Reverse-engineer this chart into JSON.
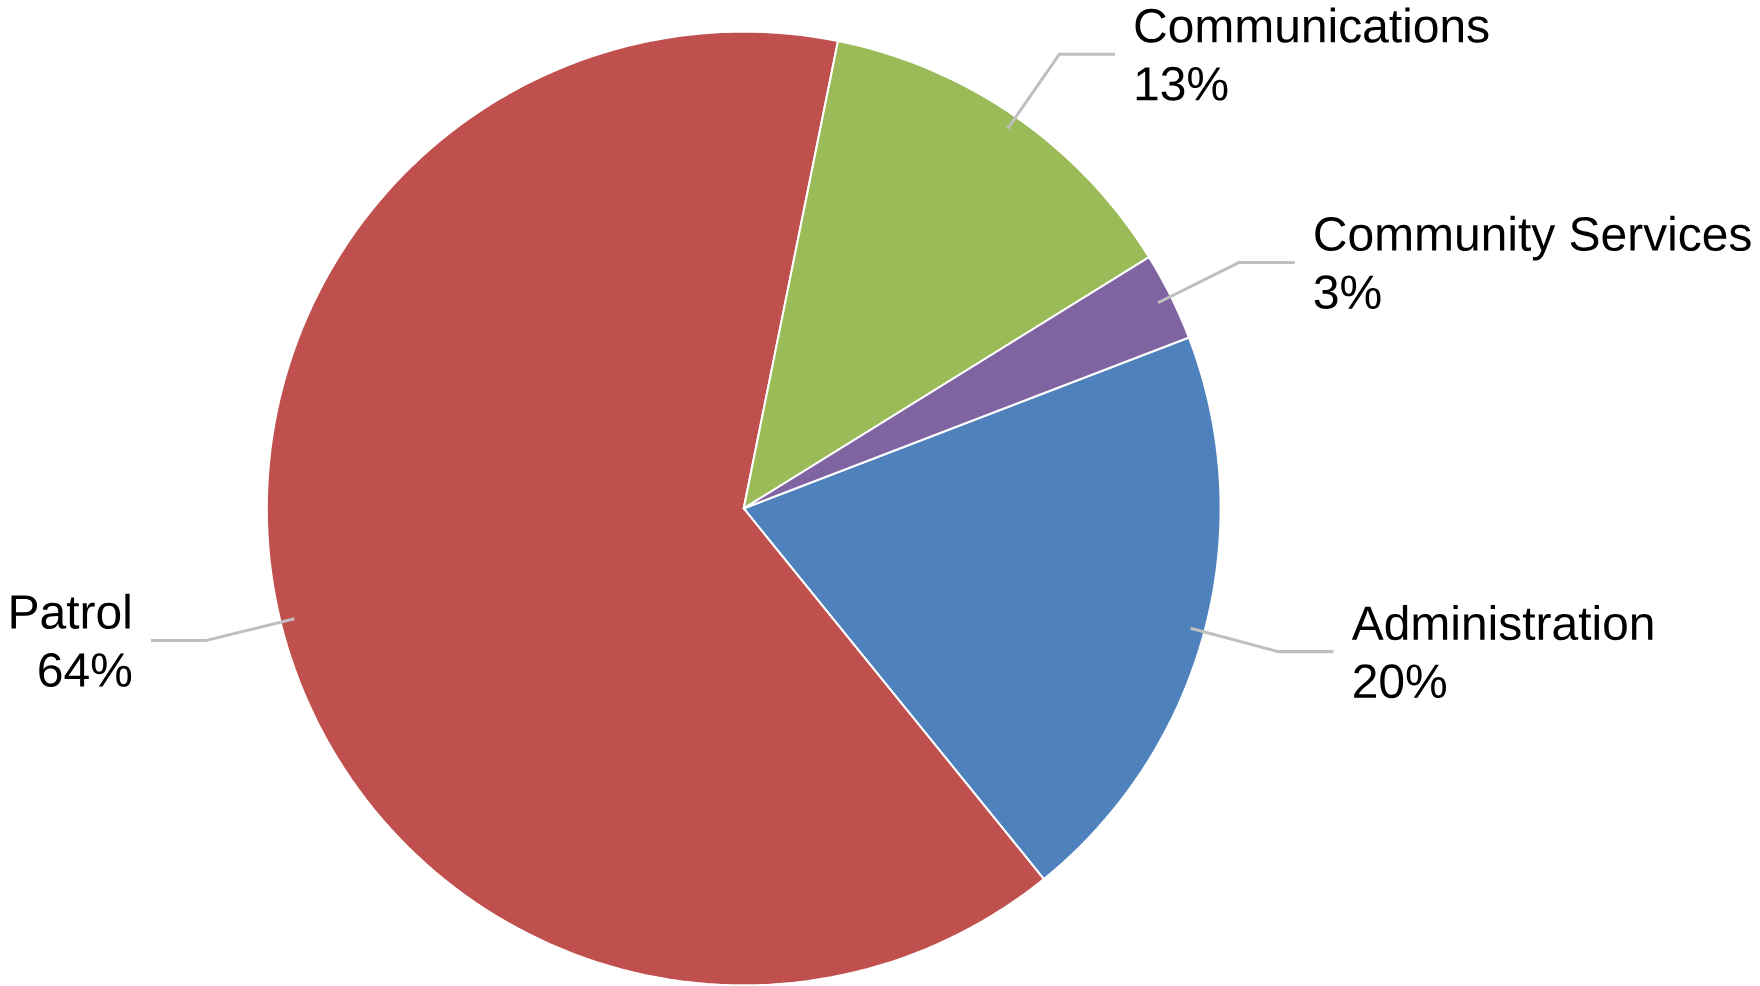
{
  "chart_data": {
    "type": "pie",
    "categories": [
      "Administration",
      "Patrol",
      "Communications",
      "Community Services"
    ],
    "values": [
      20,
      64,
      13,
      3
    ],
    "value_labels": [
      "20%",
      "64%",
      "13%",
      "3%"
    ],
    "colors": [
      "#4f81bd",
      "#c0504d",
      "#9bbb59",
      "#8064a2"
    ]
  }
}
